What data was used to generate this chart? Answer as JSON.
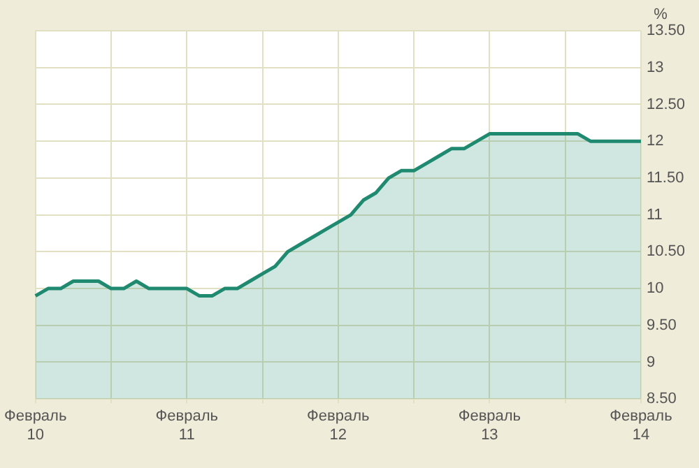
{
  "chart_data": {
    "type": "area",
    "ylabel": "%",
    "categories": [
      "Февраль 10",
      null,
      null,
      null,
      null,
      null,
      null,
      null,
      null,
      null,
      null,
      null,
      "Февраль 11",
      null,
      null,
      null,
      null,
      null,
      null,
      null,
      null,
      null,
      null,
      null,
      "Февраль 12",
      null,
      null,
      null,
      null,
      null,
      null,
      null,
      null,
      null,
      null,
      null,
      "Февраль 13",
      null,
      null,
      null,
      null,
      null,
      null,
      null,
      null,
      null,
      null,
      null,
      "Февраль 14"
    ],
    "series": [
      {
        "color": "#1f8a70",
        "values": [
          9.9,
          10.0,
          10.0,
          10.1,
          10.1,
          10.1,
          10.0,
          10.0,
          10.1,
          10.0,
          10.0,
          10.0,
          10.0,
          9.9,
          9.9,
          10.0,
          10.0,
          10.1,
          10.2,
          10.3,
          10.5,
          10.6,
          10.7,
          10.8,
          10.9,
          11.0,
          11.2,
          11.3,
          11.5,
          11.6,
          11.6,
          11.7,
          11.8,
          11.9,
          11.9,
          12.0,
          12.1,
          12.1,
          12.1,
          12.1,
          12.1,
          12.1,
          12.1,
          12.1,
          12.0,
          12.0,
          12.0,
          12.0,
          12.0
        ]
      }
    ],
    "ylim": [
      8.5,
      13.5
    ],
    "yticks": [
      {
        "value": 8.5,
        "label": "8.50"
      },
      9,
      {
        "value": 9.5,
        "label": "9.50"
      },
      10,
      {
        "value": 10.5,
        "label": "10.50"
      },
      11,
      {
        "value": 11.5,
        "label": "11.50"
      },
      12,
      {
        "value": 12.5,
        "label": "12.50"
      },
      13,
      {
        "value": 13.5,
        "label": "13.50"
      }
    ],
    "grid": true,
    "legend": false,
    "marker": "none",
    "line_style": "solid"
  }
}
